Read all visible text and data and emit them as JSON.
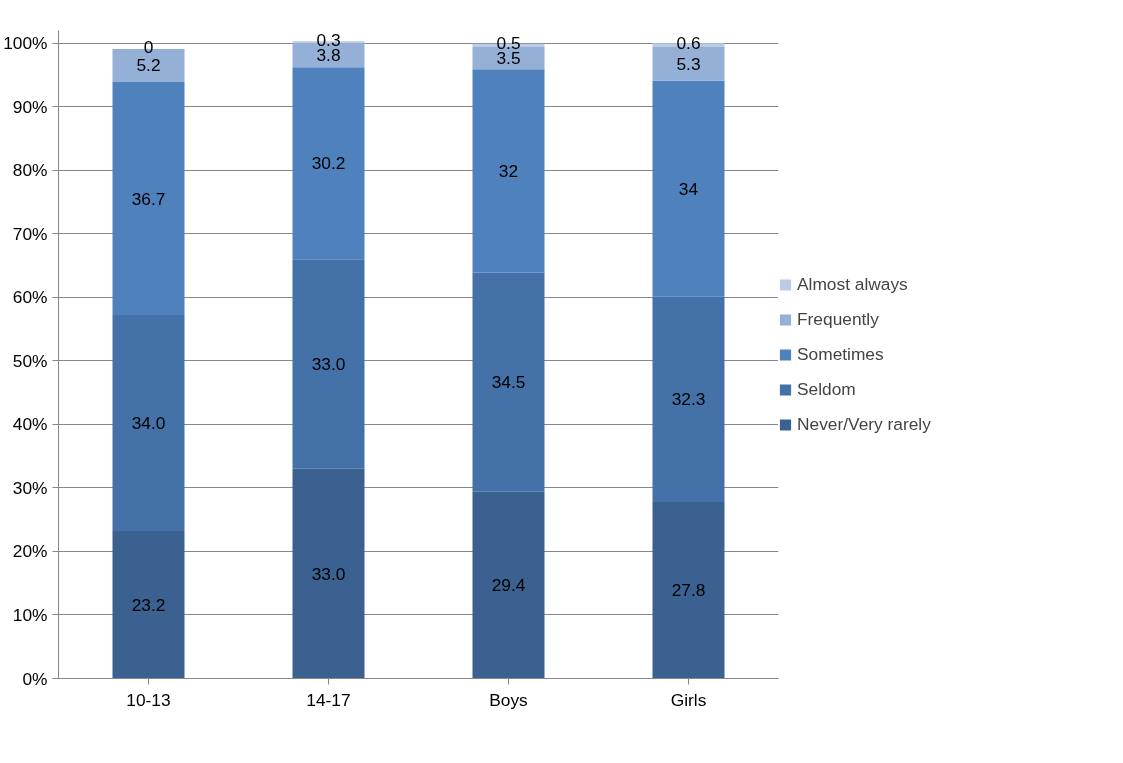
{
  "chart_data": {
    "type": "bar",
    "stacked": true,
    "categories": [
      "10-13",
      "14-17",
      "Boys",
      "Girls"
    ],
    "series": [
      {
        "name": "Never/Very rarely",
        "color": "#3b6190",
        "values": [
          23.2,
          33.0,
          29.4,
          27.8
        ],
        "value_labels": [
          "23.2",
          "33.0",
          "29.4",
          "27.8"
        ]
      },
      {
        "name": "Seldom",
        "color": "#4471a8",
        "values": [
          34.0,
          33.0,
          34.5,
          32.3
        ],
        "value_labels": [
          "34.0",
          "33.0",
          "34.5",
          "32.3"
        ]
      },
      {
        "name": "Sometimes",
        "color": "#4f81bd",
        "values": [
          36.7,
          30.2,
          32,
          34
        ],
        "value_labels": [
          "36.7",
          "30.2",
          "32",
          "34"
        ]
      },
      {
        "name": "Frequently",
        "color": "#95b0d7",
        "values": [
          5.2,
          3.8,
          3.5,
          5.3
        ],
        "value_labels": [
          "5.2",
          "3.8",
          "3.5",
          "5.3"
        ]
      },
      {
        "name": "Almost always",
        "color": "#b9cbe5",
        "values": [
          0,
          0.3,
          0.5,
          0.6
        ],
        "value_labels": [
          "0",
          "0.3",
          "0.5",
          "0.6"
        ]
      }
    ],
    "ylim": [
      0,
      102
    ],
    "yticks": [
      {
        "value": 0,
        "label": "0%"
      },
      {
        "value": 10,
        "label": "10%"
      },
      {
        "value": 20,
        "label": "20%"
      },
      {
        "value": 30,
        "label": "30%"
      },
      {
        "value": 40,
        "label": "40%"
      },
      {
        "value": 50,
        "label": "50%"
      },
      {
        "value": 60,
        "label": "60%"
      },
      {
        "value": 70,
        "label": "70%"
      },
      {
        "value": 80,
        "label": "80%"
      },
      {
        "value": 90,
        "label": "90%"
      },
      {
        "value": 100,
        "label": "100%"
      }
    ],
    "grid": "y",
    "legend": "right"
  }
}
